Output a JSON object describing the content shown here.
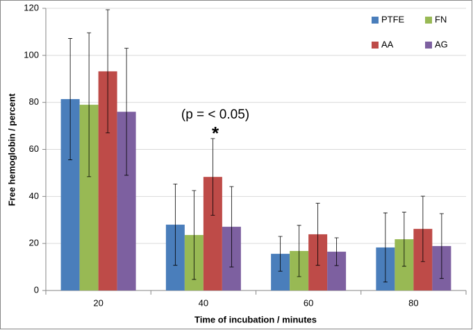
{
  "chart_data": {
    "type": "bar",
    "y_label": "Free hemoglobin / percent",
    "x_label": "Time of incubation / minutes",
    "categories": [
      "20",
      "40",
      "60",
      "80"
    ],
    "series": [
      {
        "name": "PTFE",
        "color": "#4a7ebb",
        "values": [
          81.4,
          28,
          15.6,
          18.3
        ],
        "errors": [
          25.8,
          17.3,
          7.4,
          14.7
        ]
      },
      {
        "name": "FN",
        "color": "#98b954",
        "values": [
          79,
          23.6,
          16.8,
          21.8
        ],
        "errors": [
          30.6,
          18.9,
          10.9,
          11.5
        ]
      },
      {
        "name": "AA",
        "color": "#be4b48",
        "values": [
          93.2,
          48.3,
          23.9,
          26.2
        ],
        "errors": [
          26.2,
          16.3,
          13.2,
          13.9
        ]
      },
      {
        "name": "AG",
        "color": "#7d60a0",
        "values": [
          76,
          27.1,
          16.5,
          18.9
        ],
        "errors": [
          27,
          17.1,
          5.9,
          13.8
        ]
      }
    ],
    "annotations": [
      "(p = < 0.05)",
      "*"
    ],
    "ylim": [
      0,
      120
    ],
    "yticks": [
      0,
      20,
      40,
      60,
      80,
      100,
      120
    ],
    "grid": true,
    "legend": "top-right"
  }
}
